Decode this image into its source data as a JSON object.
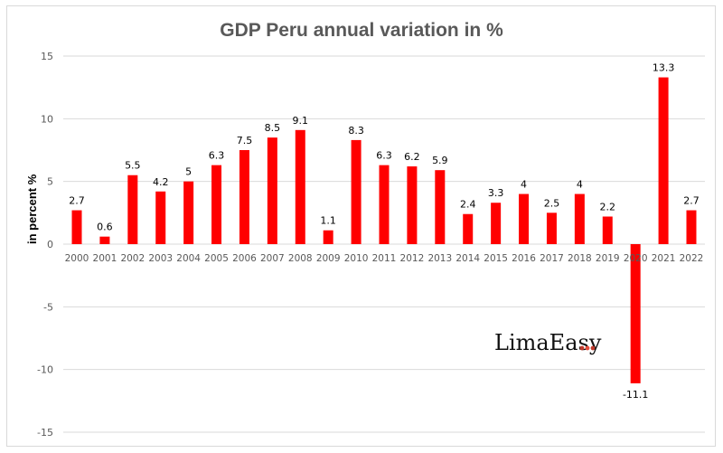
{
  "chart_data": {
    "type": "bar",
    "title": "GDP Peru annual variation in %",
    "xlabel": "",
    "ylabel": "in percent %",
    "ylim": [
      -15,
      15
    ],
    "yticks": [
      15,
      10,
      5,
      0,
      -5,
      -10,
      -15
    ],
    "grid": true,
    "legend": "none",
    "categories": [
      "2000",
      "2001",
      "2002",
      "2003",
      "2004",
      "2005",
      "2006",
      "2007",
      "2008",
      "2009",
      "2010",
      "2011",
      "2012",
      "2013",
      "2014",
      "2015",
      "2016",
      "2017",
      "2018",
      "2019",
      "2020",
      "2021",
      "2022"
    ],
    "values": [
      2.7,
      0.6,
      5.5,
      4.2,
      5,
      6.3,
      7.5,
      8.5,
      9.1,
      1.1,
      8.3,
      6.3,
      6.2,
      5.9,
      2.4,
      3.3,
      4,
      2.5,
      4,
      2.2,
      -11.1,
      13.3,
      2.7
    ],
    "labels": [
      "2.7",
      "0.6",
      "5.5",
      "4.2",
      "5",
      "6.3",
      "7.5",
      "8.5",
      "9.1",
      "1.1",
      "8.3",
      "6.3",
      "6.2",
      "5.9",
      "2.4",
      "3.3",
      "4",
      "2.5",
      "4",
      "2.2",
      "-11.1",
      "13.3",
      "2.7"
    ],
    "bar_color": "#ff0000",
    "grid_color": "#d9d9d9"
  },
  "watermark": {
    "text": "LimaEasy",
    "dots_colors": [
      "#c0392b",
      "#e74c3c",
      "#c0392b"
    ]
  }
}
